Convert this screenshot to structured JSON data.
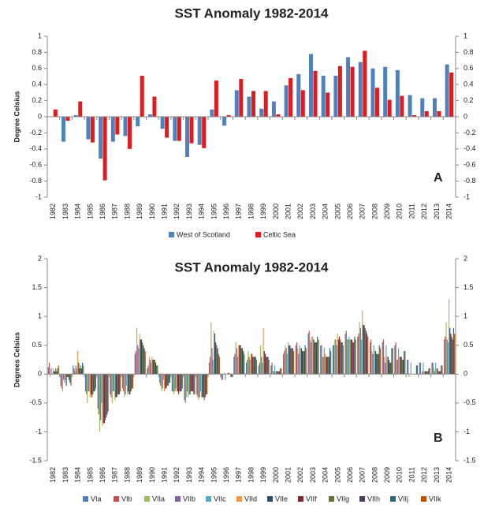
{
  "chart_data": [
    {
      "type": "bar",
      "title": "SST Anomaly 1982-2014",
      "y_label": "Degree Celsius",
      "annotation": "A",
      "categories": [
        "1982",
        "1983",
        "1984",
        "1985",
        "1986",
        "1987",
        "1988",
        "1989",
        "1990",
        "1991",
        "1992",
        "1993",
        "1994",
        "1995",
        "1996",
        "1997",
        "1998",
        "1999",
        "2000",
        "2001",
        "2002",
        "2003",
        "2004",
        "2005",
        "2006",
        "2007",
        "2008",
        "2009",
        "2010",
        "2011",
        "2012",
        "2013",
        "2014"
      ],
      "series": [
        {
          "name": "West of Scotland",
          "color": "#4f81bd",
          "values": [
            0.0,
            -0.31,
            0.02,
            -0.28,
            -0.52,
            -0.31,
            -0.24,
            -0.12,
            0.03,
            -0.15,
            -0.3,
            -0.5,
            -0.35,
            0.09,
            -0.11,
            0.33,
            0.25,
            0.1,
            0.19,
            0.39,
            0.53,
            0.78,
            0.51,
            0.51,
            0.74,
            0.68,
            0.6,
            0.62,
            0.58,
            0.27,
            0.23,
            0.23,
            0.65
          ]
        },
        {
          "name": "Celtic Sea",
          "color": "#e31a1c",
          "values": [
            0.09,
            -0.05,
            0.19,
            -0.32,
            -0.79,
            -0.22,
            -0.4,
            0.51,
            0.25,
            -0.26,
            -0.3,
            -0.33,
            -0.39,
            0.45,
            0.02,
            0.47,
            0.32,
            0.32,
            0.03,
            0.48,
            0.33,
            0.57,
            0.3,
            0.63,
            0.62,
            0.82,
            0.36,
            0.21,
            0.26,
            0.02,
            0.07,
            0.07,
            0.55
          ]
        }
      ],
      "ylim": [
        -1,
        1
      ],
      "yticks": [
        -1,
        -0.8,
        -0.6,
        -0.4,
        -0.2,
        0,
        0.2,
        0.4,
        0.6,
        0.8,
        1
      ],
      "y2lim": [
        -1,
        1
      ],
      "y2ticks": [
        -1,
        -0.8,
        -0.6,
        -0.4,
        -0.2,
        0,
        0.2,
        0.4,
        0.6,
        0.8,
        1
      ],
      "legend": "bottom"
    },
    {
      "type": "bar",
      "title": "SST Anomaly 1982-2014",
      "y_label": "Degrees Celsius",
      "annotation": "B",
      "categories": [
        "1982",
        "1983",
        "1984",
        "1985",
        "1986",
        "1987",
        "1988",
        "1989",
        "1990",
        "1991",
        "1992",
        "1993",
        "1994",
        "1995",
        "1996",
        "1997",
        "1998",
        "1999",
        "2000",
        "2001",
        "2002",
        "2003",
        "2004",
        "2005",
        "2006",
        "2007",
        "2008",
        "2009",
        "2010",
        "2011",
        "2012",
        "2013",
        "2014"
      ],
      "series": [
        {
          "name": "VIa",
          "color": "#4f81bd",
          "values": [
            0.12,
            -0.2,
            0.15,
            -0.3,
            -0.6,
            -0.35,
            -0.25,
            0.35,
            0.1,
            -0.15,
            -0.3,
            -0.45,
            -0.35,
            0.2,
            -0.1,
            0.3,
            0.2,
            0.15,
            0.15,
            0.35,
            0.5,
            0.7,
            0.5,
            0.5,
            0.7,
            0.65,
            0.55,
            0.55,
            0.5,
            0.25,
            0.2,
            0.2,
            0.6
          ]
        },
        {
          "name": "VIb",
          "color": "#c0504d",
          "values": [
            0.2,
            -0.25,
            0.1,
            -0.35,
            -0.7,
            -0.4,
            -0.3,
            0.4,
            0.15,
            -0.2,
            -0.3,
            -0.5,
            -0.4,
            0.3,
            -0.1,
            0.35,
            0.25,
            0.2,
            0.2,
            0.4,
            0.55,
            0.75,
            0.5,
            0.5,
            0.75,
            0.7,
            0.6,
            0.6,
            0.55,
            0.25,
            0.2,
            0.2,
            0.65
          ]
        },
        {
          "name": "VIIa",
          "color": "#9bbb59",
          "values": [
            -0.05,
            -0.3,
            0.05,
            -0.5,
            -1.0,
            -0.5,
            -0.4,
            0.8,
            0.3,
            -0.3,
            -0.35,
            -0.4,
            -0.45,
            0.9,
            0.0,
            0.55,
            0.4,
            0.5,
            0.05,
            0.5,
            0.45,
            0.6,
            0.3,
            0.6,
            0.6,
            0.9,
            0.4,
            0.3,
            0.25,
            -0.05,
            0.0,
            0.1,
            0.9
          ]
        },
        {
          "name": "VIIb",
          "color": "#8064a2",
          "values": [
            0.1,
            -0.1,
            0.15,
            -0.3,
            -0.8,
            -0.3,
            -0.35,
            0.5,
            0.25,
            -0.25,
            -0.3,
            -0.3,
            -0.4,
            0.45,
            0.02,
            0.45,
            0.3,
            0.3,
            0.05,
            0.45,
            0.35,
            0.55,
            0.3,
            0.6,
            0.6,
            0.8,
            0.35,
            0.2,
            0.25,
            0.0,
            0.05,
            0.05,
            0.6
          ]
        },
        {
          "name": "VIIc",
          "color": "#4bacc6",
          "values": [
            0.0,
            -0.15,
            0.1,
            -0.3,
            -0.5,
            -0.3,
            -0.2,
            0.45,
            0.2,
            -0.1,
            -0.25,
            -0.4,
            -0.3,
            0.25,
            -0.1,
            0.3,
            0.25,
            0.2,
            0.15,
            0.35,
            0.5,
            0.65,
            0.45,
            0.5,
            0.65,
            0.6,
            0.5,
            0.5,
            0.45,
            0.2,
            0.2,
            0.2,
            0.55
          ]
        },
        {
          "name": "VIId",
          "color": "#f79646",
          "values": [
            0.1,
            -0.1,
            0.4,
            -0.4,
            -0.9,
            -0.45,
            -0.35,
            0.7,
            0.3,
            -0.3,
            -0.3,
            -0.35,
            -0.4,
            0.75,
            0.0,
            0.5,
            0.35,
            0.8,
            0.05,
            0.55,
            0.45,
            0.65,
            0.35,
            0.7,
            0.6,
            1.1,
            0.4,
            0.3,
            0.3,
            0.0,
            0.05,
            0.1,
            1.3
          ]
        },
        {
          "name": "VIIe",
          "color": "#2c4d75",
          "values": [
            0.05,
            -0.2,
            0.2,
            -0.35,
            -0.85,
            -0.4,
            -0.3,
            0.6,
            0.25,
            -0.25,
            -0.3,
            -0.35,
            -0.4,
            0.7,
            0.0,
            0.5,
            0.35,
            0.4,
            0.05,
            0.5,
            0.45,
            0.6,
            0.3,
            0.6,
            0.6,
            0.85,
            0.4,
            0.3,
            0.3,
            0.0,
            0.05,
            0.1,
            0.8
          ]
        },
        {
          "name": "VIIf",
          "color": "#772c2a",
          "values": [
            0.05,
            -0.05,
            0.1,
            -0.4,
            -0.85,
            -0.4,
            -0.35,
            0.6,
            0.25,
            -0.25,
            -0.35,
            -0.3,
            -0.4,
            0.55,
            0.02,
            0.5,
            0.3,
            0.35,
            0.05,
            0.5,
            0.4,
            0.55,
            0.3,
            0.65,
            0.6,
            0.85,
            0.35,
            0.25,
            0.3,
            0.0,
            0.05,
            0.05,
            0.7
          ]
        },
        {
          "name": "VIIg",
          "color": "#5f7530",
          "values": [
            0.1,
            -0.05,
            0.15,
            -0.35,
            -0.8,
            -0.35,
            -0.35,
            0.55,
            0.25,
            -0.2,
            -0.3,
            -0.3,
            -0.45,
            0.5,
            0.02,
            0.45,
            0.3,
            0.3,
            0.05,
            0.45,
            0.4,
            0.55,
            0.3,
            0.6,
            0.55,
            0.8,
            0.35,
            0.2,
            0.25,
            0.0,
            0.05,
            0.05,
            0.65
          ]
        },
        {
          "name": "VIIh",
          "color": "#4d3b62",
          "values": [
            0.05,
            -0.1,
            0.1,
            -0.3,
            -0.75,
            -0.35,
            -0.3,
            0.5,
            0.2,
            -0.2,
            -0.3,
            -0.3,
            -0.4,
            0.45,
            0.0,
            0.45,
            0.3,
            0.3,
            0.05,
            0.45,
            0.4,
            0.55,
            0.3,
            0.55,
            0.55,
            0.75,
            0.35,
            0.2,
            0.25,
            0.0,
            0.05,
            0.05,
            0.6
          ]
        },
        {
          "name": "VIIj",
          "color": "#276a7c",
          "values": [
            0.1,
            -0.15,
            0.2,
            -0.3,
            -0.7,
            -0.35,
            -0.25,
            0.45,
            0.15,
            -0.15,
            -0.3,
            -0.35,
            -0.35,
            0.35,
            -0.05,
            0.4,
            0.3,
            0.3,
            0.1,
            0.45,
            0.5,
            0.65,
            0.45,
            0.55,
            0.65,
            0.7,
            0.5,
            0.45,
            0.4,
            0.15,
            0.1,
            0.15,
            0.8
          ]
        },
        {
          "name": "VIIk",
          "color": "#b65708",
          "values": [
            0.15,
            -0.2,
            0.15,
            -0.25,
            -0.65,
            -0.3,
            -0.25,
            0.4,
            0.15,
            -0.15,
            -0.25,
            -0.35,
            -0.35,
            0.3,
            -0.05,
            0.35,
            0.25,
            0.25,
            0.1,
            0.4,
            0.45,
            0.6,
            0.4,
            0.5,
            0.6,
            0.65,
            0.45,
            0.45,
            0.4,
            0.15,
            0.1,
            0.15,
            0.7
          ]
        }
      ],
      "ylim": [
        -1.5,
        2
      ],
      "yticks": [
        -1.5,
        -1,
        -0.5,
        0,
        0.5,
        1,
        1.5,
        2
      ],
      "y2lim": [
        -1.5,
        2
      ],
      "y2ticks": [
        -1.5,
        -1,
        -0.5,
        0,
        0.5,
        1,
        1.5,
        2
      ],
      "legend": "bottom"
    }
  ]
}
